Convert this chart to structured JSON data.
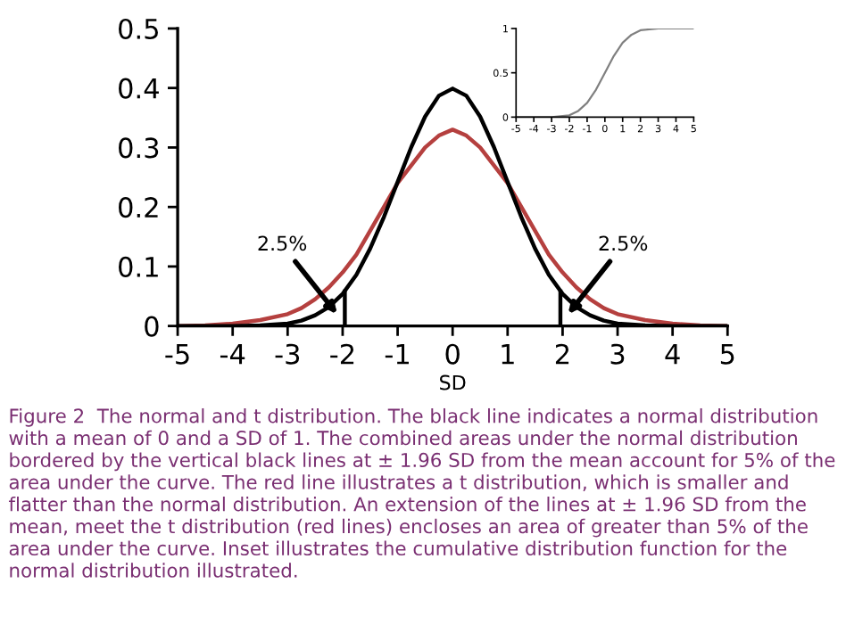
{
  "chart_data": [
    {
      "type": "line",
      "xlabel": "SD",
      "xlim": [
        -5,
        5
      ],
      "xticks": [
        -5,
        -4,
        -3,
        -2,
        -1,
        0,
        1,
        2,
        3,
        4,
        5
      ],
      "ylim": [
        0,
        0.5
      ],
      "yticks": [
        0,
        0.1,
        0.2,
        0.3,
        0.4,
        0.5
      ],
      "grid": false,
      "legend": false,
      "series": [
        {
          "color": "#b5403f",
          "x": [
            -5,
            -4.5,
            -4,
            -3.5,
            -3,
            -2.75,
            -2.5,
            -2.25,
            -2,
            -1.75,
            -1.5,
            -1.25,
            -1,
            -0.75,
            -0.5,
            -0.25,
            0,
            0.25,
            0.5,
            0.75,
            1,
            1.25,
            1.5,
            1.75,
            2,
            2.25,
            2.5,
            2.75,
            3,
            3.5,
            4,
            4.5,
            5
          ],
          "values": [
            0,
            0.001,
            0.004,
            0.01,
            0.02,
            0.03,
            0.045,
            0.065,
            0.09,
            0.12,
            0.16,
            0.2,
            0.24,
            0.27,
            0.3,
            0.32,
            0.33,
            0.32,
            0.3,
            0.27,
            0.24,
            0.2,
            0.16,
            0.12,
            0.09,
            0.065,
            0.045,
            0.03,
            0.02,
            0.01,
            0.004,
            0.001,
            0
          ]
        },
        {
          "color": "#000000",
          "x": [
            -5,
            -4,
            -3.5,
            -3,
            -2.75,
            -2.5,
            -2.25,
            -2,
            -1.75,
            -1.5,
            -1.25,
            -1,
            -0.75,
            -0.5,
            -0.25,
            0,
            0.25,
            0.5,
            0.75,
            1,
            1.25,
            1.5,
            1.75,
            2,
            2.25,
            2.5,
            2.75,
            3,
            3.5,
            4,
            5
          ],
          "values": [
            0,
            0,
            0.001,
            0.004,
            0.009,
            0.018,
            0.032,
            0.054,
            0.086,
            0.13,
            0.183,
            0.242,
            0.301,
            0.352,
            0.387,
            0.399,
            0.387,
            0.352,
            0.301,
            0.242,
            0.183,
            0.13,
            0.086,
            0.054,
            0.032,
            0.018,
            0.009,
            0.004,
            0.001,
            0,
            0
          ]
        },
        {
          "color": "#000000",
          "x": [
            -1.96,
            -1.96
          ],
          "values": [
            0,
            0.058
          ]
        },
        {
          "color": "#000000",
          "x": [
            1.96,
            1.96
          ],
          "values": [
            0,
            0.058
          ]
        }
      ],
      "annotations": [
        {
          "text": "2.5%",
          "x": -2.1,
          "y": 0.02
        },
        {
          "text": "2.5%",
          "x": 2.1,
          "y": 0.02
        },
        "Figure 2  The normal and t distribution. The black line indicates a normal distribution with a mean of 0 and a SD of 1. The combined areas under the normal distribution bordered by the vertical black lines at ± 1.96 SD from the mean account for 5% of the area under the curve. The red line illustrates a t distribution, which is smaller and flatter than the normal distribution. An extension of the lines at ± 1.96 SD from the mean, meet the t distribution (red lines) encloses an area of greater than 5% of the area under the curve. Inset illustrates the cumulative distribution function for the normal distribution illustrated."
      ]
    },
    {
      "type": "line",
      "xlim": [
        -5,
        5
      ],
      "xticks": [
        -5,
        -4,
        -3,
        -2,
        -1,
        0,
        1,
        2,
        3,
        4,
        5
      ],
      "ylim": [
        0,
        1
      ],
      "yticks": [
        0,
        0.5,
        1
      ],
      "grid": false,
      "legend": false,
      "series": [
        {
          "color": "#808080",
          "x": [
            -5,
            -4.5,
            -4,
            -3.5,
            -3,
            -2.5,
            -2,
            -1.5,
            -1,
            -0.5,
            0,
            0.5,
            1,
            1.5,
            2,
            2.5,
            3,
            3.5,
            4,
            4.5,
            5
          ],
          "values": [
            0,
            0,
            0,
            0,
            0,
            0.01,
            0.02,
            0.07,
            0.16,
            0.31,
            0.5,
            0.69,
            0.84,
            0.93,
            0.98,
            0.99,
            1,
            1,
            1,
            1,
            1
          ]
        }
      ]
    }
  ]
}
